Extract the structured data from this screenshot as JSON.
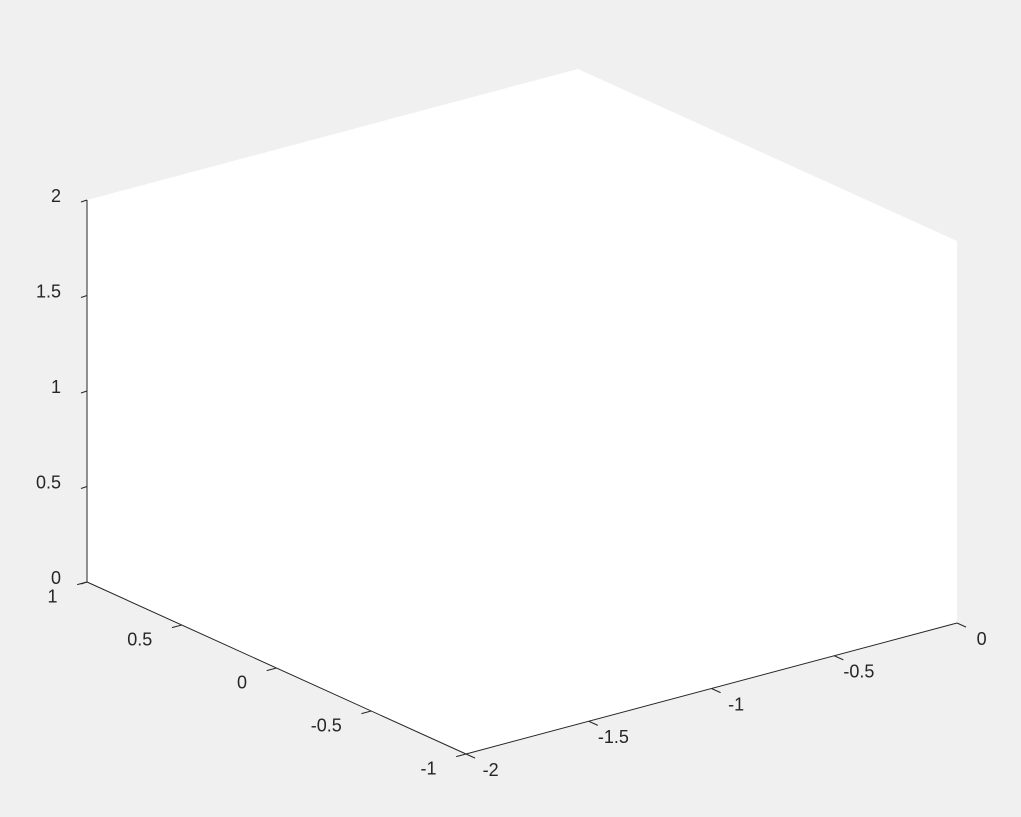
{
  "figure": {
    "background_color": "#f0f0f0",
    "axes_face_color": "#ffffff",
    "axis_color": "#262626"
  },
  "chart_data": {
    "type": "scatter",
    "series": [],
    "title": "",
    "xlabel": "",
    "ylabel": "",
    "zlabel": "",
    "xlim": [
      -2,
      0
    ],
    "ylim": [
      -1,
      1
    ],
    "zlim": [
      0,
      2
    ],
    "xticks": [
      -2,
      -1.5,
      -1,
      -0.5,
      0
    ],
    "xtick_labels": [
      "-2",
      "-1.5",
      "-1",
      "-0.5",
      "0"
    ],
    "yticks": [
      -1,
      -0.5,
      0,
      0.5,
      1
    ],
    "ytick_labels": [
      "-1",
      "-0.5",
      "0",
      "0.5",
      "1"
    ],
    "zticks": [
      0,
      0.5,
      1,
      1.5,
      2
    ],
    "ztick_labels": [
      "0",
      "0.5",
      "1",
      "1.5",
      "2"
    ],
    "view": "3d",
    "grid": false,
    "box": false
  }
}
